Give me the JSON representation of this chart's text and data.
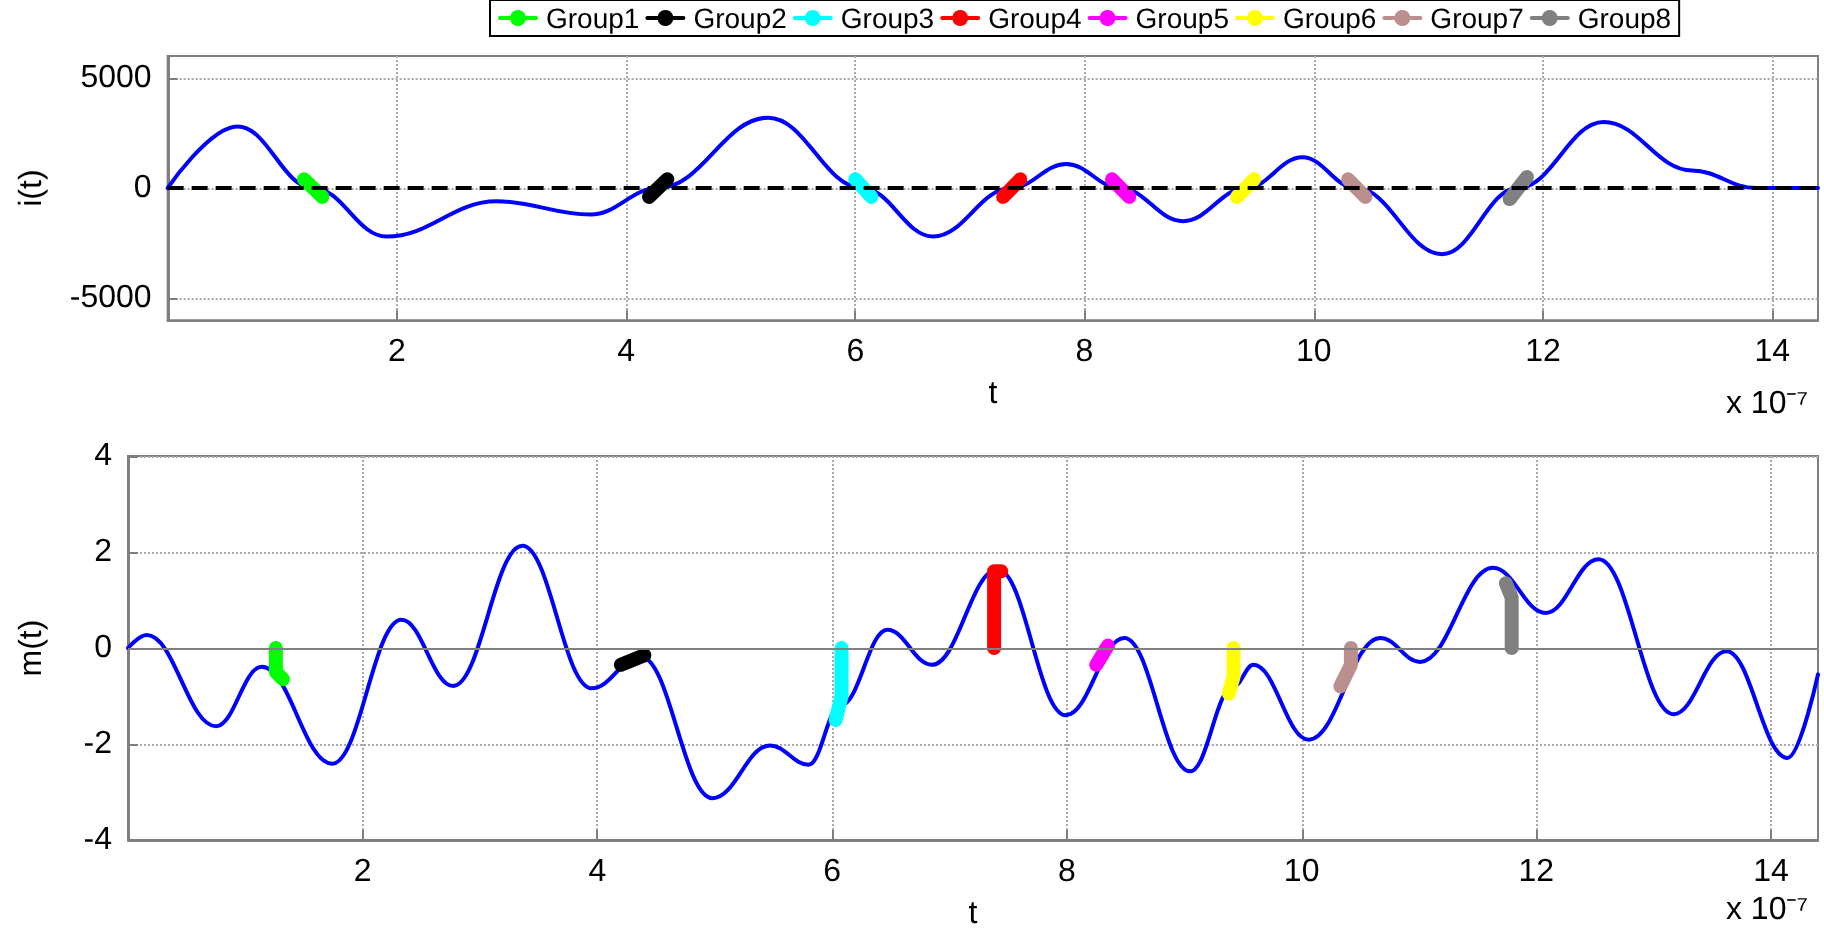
{
  "chart_data": [
    {
      "type": "line",
      "ylabel": "i(t)",
      "xlabel": "t",
      "annotations": [
        "x 10⁻⁷"
      ],
      "xlim": [
        0,
        14.4
      ],
      "xticks": [
        2,
        4,
        6,
        8,
        10,
        12,
        14
      ],
      "ylim": [
        -6000,
        6000
      ],
      "yticks": [
        -5000,
        0,
        5000
      ],
      "grid": true,
      "legend": "top",
      "marker": "circle",
      "line_style": "solid",
      "ref_lines": [
        {
          "axis": "y",
          "value": 0,
          "color": "#000000",
          "line_style": "dashed"
        }
      ],
      "series": [
        {
          "color": "#0000ff",
          "marker": "none",
          "x": [
            0,
            0.61,
            1.27,
            1.91,
            2.87,
            3.69,
            4.28,
            5.24,
            6.06,
            6.68,
            7.36,
            7.84,
            8.31,
            8.86,
            9.41,
            9.9,
            10.37,
            11.12,
            11.78,
            12.53,
            13.3,
            13.86,
            14.4
          ],
          "values": [
            0,
            2800,
            0,
            -2200,
            -600,
            -1200,
            0,
            3200,
            0,
            -2200,
            0,
            1100,
            0,
            -1500,
            0,
            1400,
            0,
            -3000,
            0,
            3000,
            800,
            0,
            0
          ]
        },
        {
          "name": "Group1",
          "color": "#00ff00",
          "x": [
            1.19,
            1.35
          ],
          "values": [
            400,
            -400
          ]
        },
        {
          "name": "Group2",
          "color": "#000000",
          "x": [
            4.2,
            4.36
          ],
          "values": [
            -400,
            400
          ]
        },
        {
          "name": "Group3",
          "color": "#00ffff",
          "x": [
            6.0,
            6.14
          ],
          "values": [
            400,
            -400
          ]
        },
        {
          "name": "Group4",
          "color": "#ff0000",
          "x": [
            7.29,
            7.44
          ],
          "values": [
            -400,
            400
          ]
        },
        {
          "name": "Group5",
          "color": "#ff00ff",
          "x": [
            8.24,
            8.39
          ],
          "values": [
            400,
            -400
          ]
        },
        {
          "name": "Group6",
          "color": "#ffff00",
          "x": [
            9.33,
            9.48
          ],
          "values": [
            -400,
            400
          ]
        },
        {
          "name": "Group7",
          "color": "#bc8f8f",
          "x": [
            10.3,
            10.45
          ],
          "values": [
            400,
            -400
          ]
        },
        {
          "name": "Group8",
          "color": "#808080",
          "x": [
            11.71,
            11.86
          ],
          "values": [
            -500,
            500
          ]
        }
      ]
    },
    {
      "type": "line",
      "ylabel": "m(t)",
      "xlabel": "t",
      "annotations": [
        "x 10⁻⁷"
      ],
      "xlim": [
        0,
        14.4
      ],
      "xticks": [
        2,
        4,
        6,
        8,
        10,
        12,
        14
      ],
      "ylim": [
        -4,
        4
      ],
      "yticks": [
        -4,
        -2,
        0,
        2,
        4
      ],
      "grid": true,
      "marker": "circle",
      "line_style": "solid",
      "ref_lines": [
        {
          "axis": "y",
          "value": 0,
          "color": "#808080",
          "line_style": "solid"
        }
      ],
      "series": [
        {
          "color": "#0000ff",
          "marker": "none",
          "x": [
            0,
            0.16,
            0.75,
            1.14,
            1.74,
            2.33,
            2.77,
            3.36,
            3.95,
            4.37,
            4.98,
            5.47,
            5.8,
            6.07,
            6.47,
            6.85,
            7.41,
            7.99,
            8.49,
            9.05,
            9.42,
            9.59,
            10.06,
            10.67,
            11.01,
            11.63,
            12.08,
            12.53,
            13.17,
            13.62,
            14.14,
            14.4
          ],
          "values": [
            0,
            0.27,
            -1.63,
            -0.39,
            -2.41,
            0.59,
            -0.79,
            2.13,
            -0.84,
            -0.18,
            -3.13,
            -2.03,
            -2.43,
            -1.2,
            0.38,
            -0.35,
            1.64,
            -1.4,
            0.21,
            -2.57,
            -0.8,
            -0.35,
            -1.91,
            0.21,
            -0.29,
            1.67,
            0.73,
            1.85,
            -1.38,
            -0.07,
            -2.29,
            -0.55
          ]
        },
        {
          "color": "#00ff00",
          "x": [
            1.26,
            1.26,
            1.32
          ],
          "values": [
            0,
            -0.5,
            -0.65
          ]
        },
        {
          "color": "#000000",
          "x": [
            4.2,
            4.4
          ],
          "values": [
            -0.35,
            -0.15
          ]
        },
        {
          "color": "#00ffff",
          "x": [
            6.08,
            6.08,
            6.03
          ],
          "values": [
            0,
            -1.0,
            -1.5
          ]
        },
        {
          "color": "#ff0000",
          "x": [
            7.38,
            7.38,
            7.44
          ],
          "values": [
            0,
            1.6,
            1.6
          ]
        },
        {
          "color": "#ff00ff",
          "x": [
            8.25,
            8.35
          ],
          "values": [
            -0.35,
            0.05
          ]
        },
        {
          "color": "#ffff00",
          "x": [
            9.42,
            9.42,
            9.38
          ],
          "values": [
            0,
            -0.6,
            -0.95
          ]
        },
        {
          "color": "#bc8f8f",
          "x": [
            10.42,
            10.42,
            10.33
          ],
          "values": [
            0,
            -0.35,
            -0.8
          ]
        },
        {
          "color": "#808080",
          "x": [
            11.79,
            11.79,
            11.74
          ],
          "values": [
            0,
            1.05,
            1.35
          ]
        }
      ]
    }
  ]
}
